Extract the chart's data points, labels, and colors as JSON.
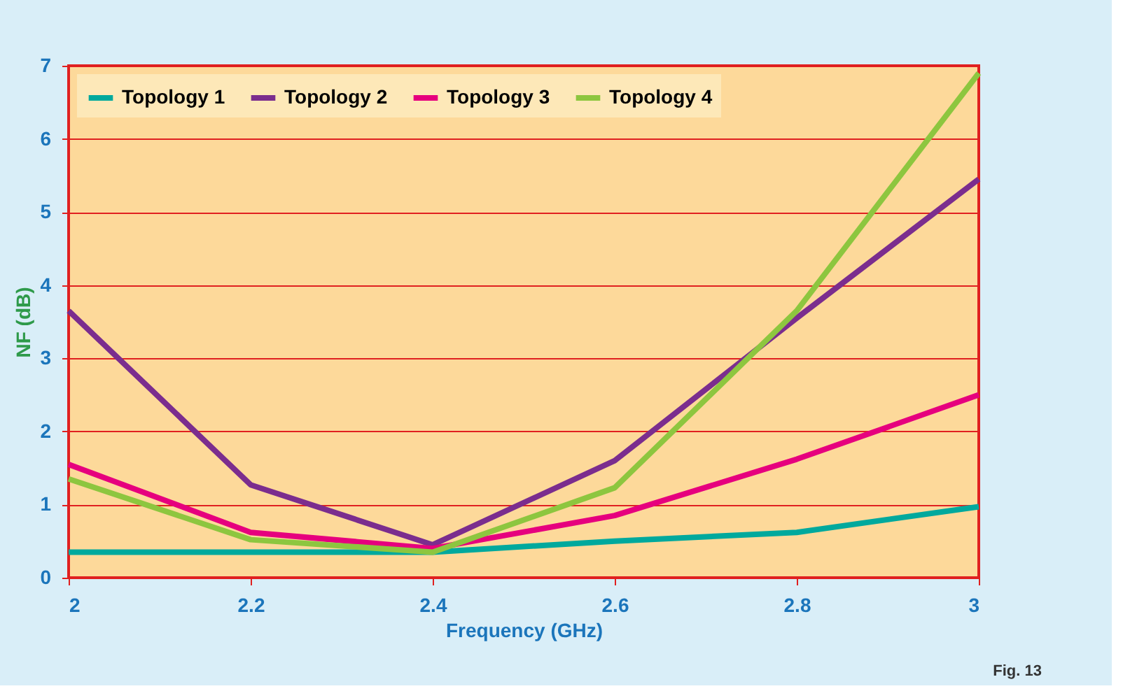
{
  "chart_data": {
    "type": "line",
    "xlabel": "Frequency (GHz)",
    "ylabel": "NF (dB)",
    "x": [
      2,
      2.2,
      2.4,
      2.6,
      2.8,
      3
    ],
    "xlim": [
      2,
      3
    ],
    "xticks": [
      2,
      2.2,
      2.4,
      2.6,
      2.8,
      3
    ],
    "ylim": [
      0,
      7
    ],
    "yticks": [
      0,
      1,
      2,
      3,
      4,
      5,
      6,
      7
    ],
    "grid": "y",
    "legend": "top left",
    "marker": "none",
    "line_style": "solid",
    "series": [
      {
        "name": "Topology 1",
        "color": "#00a99d",
        "values": [
          0.35,
          0.35,
          0.35,
          0.5,
          0.62,
          0.97
        ]
      },
      {
        "name": "Topology 2",
        "color": "#7b2d8e",
        "values": [
          3.65,
          1.27,
          0.45,
          1.6,
          3.55,
          5.45
        ]
      },
      {
        "name": "Topology 3",
        "color": "#e6007e",
        "values": [
          1.55,
          0.62,
          0.4,
          0.85,
          1.62,
          2.5
        ]
      },
      {
        "name": "Topology 4",
        "color": "#8dc63f",
        "values": [
          1.35,
          0.52,
          0.35,
          1.23,
          3.65,
          6.9
        ]
      }
    ],
    "annotations": [
      "Fig. 13"
    ]
  }
}
